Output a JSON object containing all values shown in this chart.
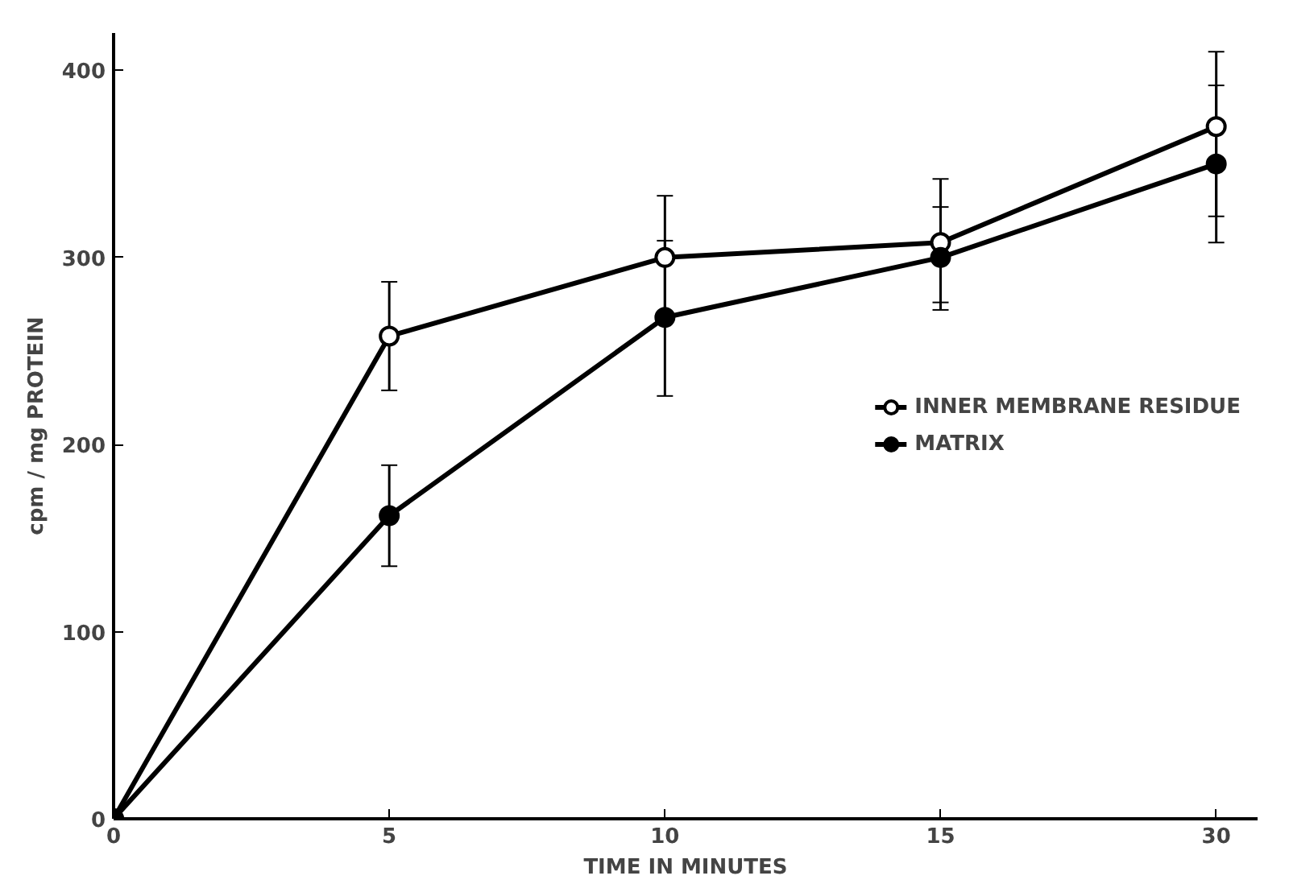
{
  "chart_data": {
    "type": "line",
    "xlabel": "TIME IN MINUTES",
    "ylabel": "cpm / mg PROTEIN",
    "categories": [
      "0",
      "5",
      "10",
      "15",
      "30"
    ],
    "series": [
      {
        "name": "INNER MEMBRANE RESIDUE",
        "color": "#000000",
        "values": [
          0,
          258,
          300,
          308,
          370
        ],
        "errors": [
          null,
          [
            229,
            287
          ],
          33,
          [
            272,
            342
          ],
          [
            322,
            410
          ]
        ]
      },
      {
        "name": "MATRIX",
        "color": "#000000",
        "values": [
          0,
          162,
          268,
          300,
          350
        ],
        "errors": [
          null,
          [
            135,
            189
          ],
          [
            226,
            309
          ],
          [
            276,
            327
          ],
          [
            308,
            392
          ]
        ]
      }
    ],
    "ylim": [
      0,
      420
    ],
    "yticks": [
      0,
      100,
      200,
      300,
      400
    ],
    "marker": "circle",
    "line_style": "solid",
    "legend": "right",
    "grid": false
  }
}
